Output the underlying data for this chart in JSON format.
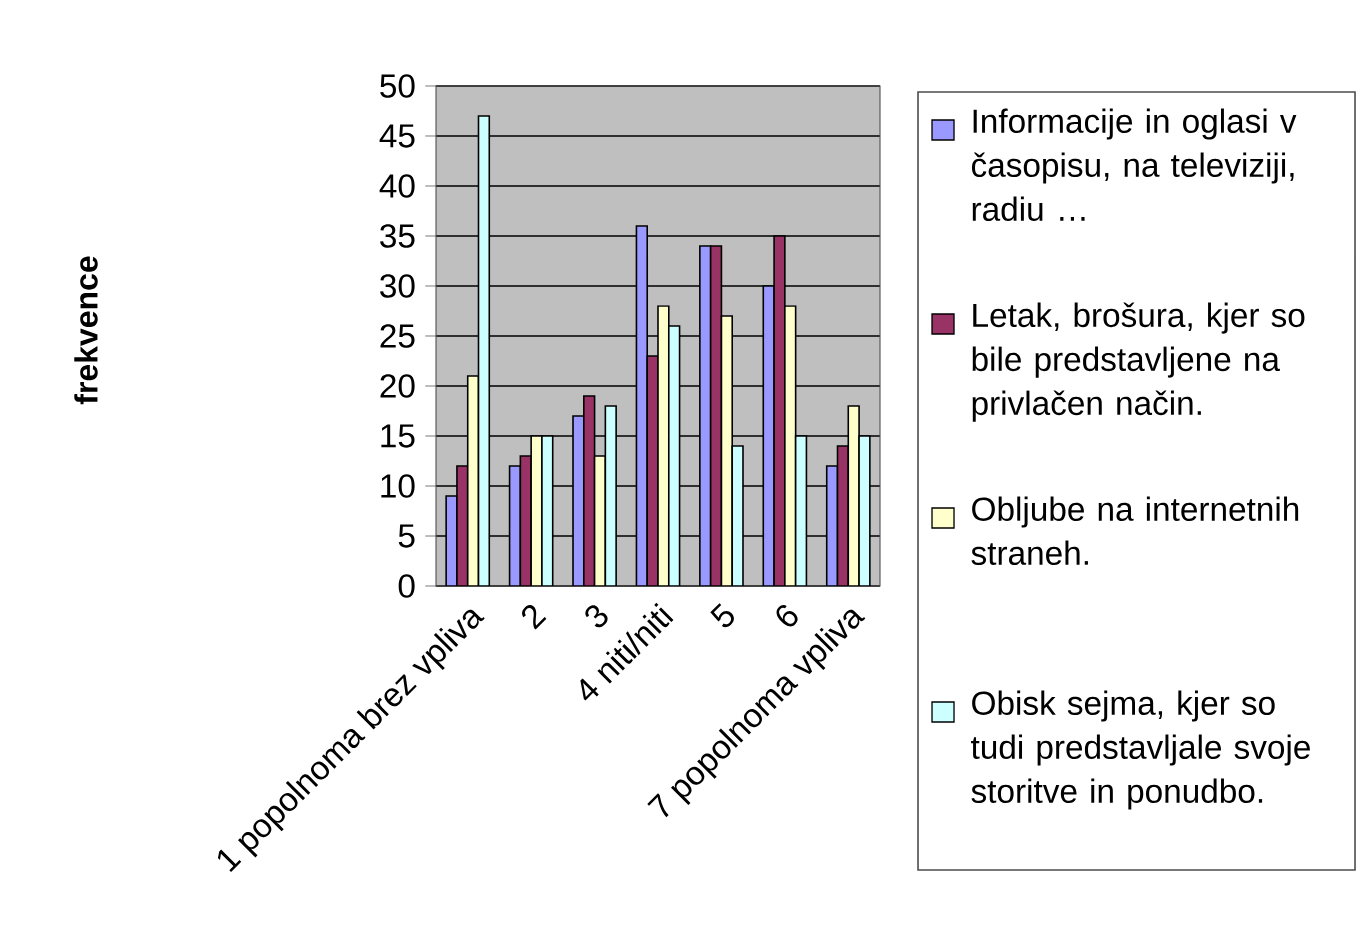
{
  "chart_data": {
    "type": "bar",
    "ylabel": "frekvence",
    "categories": [
      "1 popolnoma brez vpliva",
      "2",
      "3",
      "4 niti/niti",
      "5",
      "6",
      "7 popolnoma vpliva"
    ],
    "series": [
      {
        "name": "Informacije in oglasi v časopisu, na televiziji, radiu …",
        "color": "#9999ff",
        "values": [
          9,
          12,
          17,
          36,
          34,
          30,
          12
        ]
      },
      {
        "name": "Letak, brošura, kjer so bile predstavljene na privlačen način.",
        "color": "#993366",
        "values": [
          12,
          13,
          19,
          23,
          34,
          35,
          14
        ]
      },
      {
        "name": "Obljube na internetnih straneh.",
        "color": "#ffffcc",
        "values": [
          21,
          15,
          13,
          28,
          27,
          28,
          18
        ]
      },
      {
        "name": "Obisk sejma, kjer so tudi predstavljale svoje storitve in ponudbo.",
        "color": "#ccffff",
        "values": [
          47,
          15,
          18,
          26,
          14,
          15,
          15
        ]
      }
    ],
    "ylim": [
      0,
      50
    ],
    "yticks": [
      0,
      5,
      10,
      15,
      20,
      25,
      30,
      35,
      40,
      45,
      50
    ],
    "grid": "y",
    "legend": "right"
  }
}
